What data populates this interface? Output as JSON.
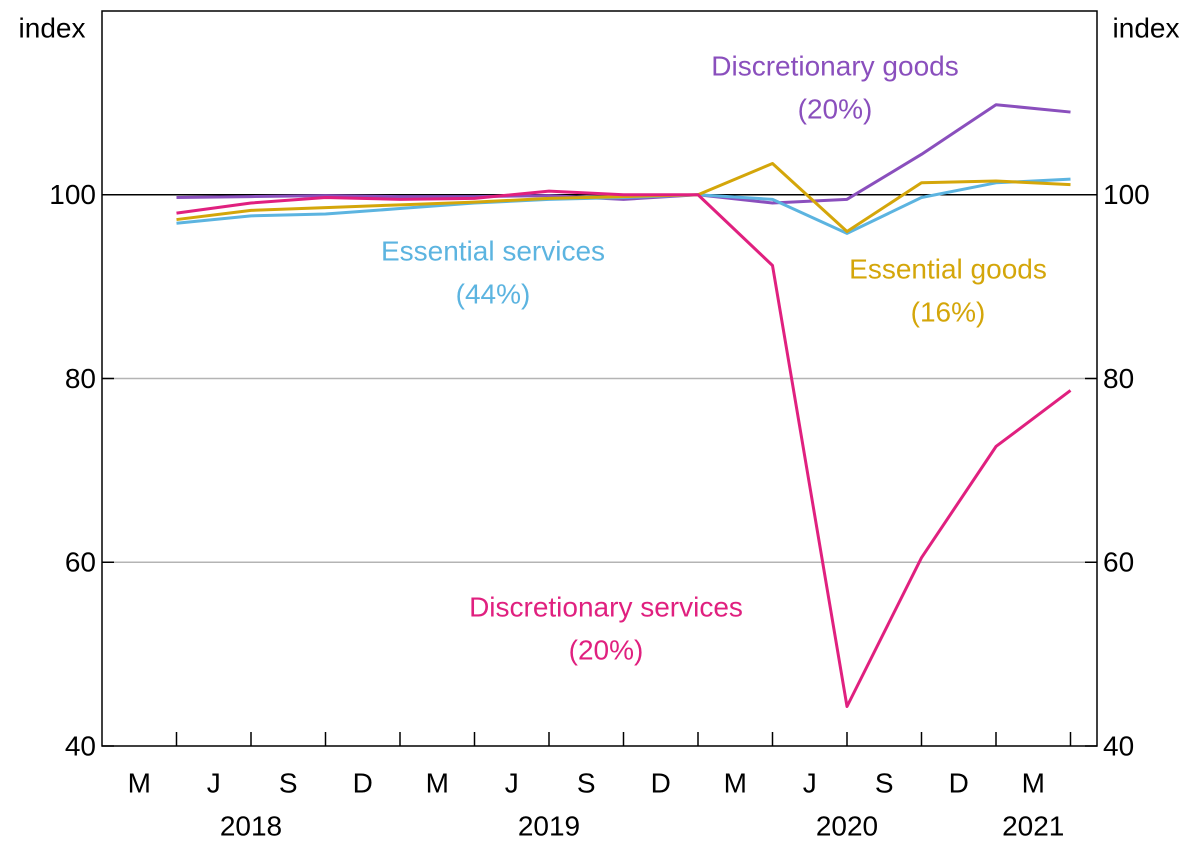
{
  "chart_data": {
    "type": "line",
    "ylabel": "index",
    "y2label": "index",
    "categories": [
      "M",
      "J",
      "S",
      "D",
      "M",
      "J",
      "S",
      "D",
      "M",
      "J",
      "S",
      "D",
      "M"
    ],
    "x_groups": [
      {
        "label": "2018",
        "size": 4
      },
      {
        "label": "2019",
        "size": 4
      },
      {
        "label": "2020",
        "size": 4
      },
      {
        "label": "2021",
        "size": 1
      }
    ],
    "ylim": [
      40,
      120
    ],
    "yticks": [
      40,
      60,
      80,
      100
    ],
    "y2lim": [
      40,
      120
    ],
    "y2ticks": [
      40,
      60,
      80,
      100
    ],
    "grid": true,
    "hline": 100,
    "series": [
      {
        "name": "Discretionary goods",
        "share": "(20%)",
        "color": "#8a4fbd",
        "values": [
          99.7,
          99.8,
          99.9,
          99.8,
          99.8,
          99.9,
          99.5,
          100,
          99.1,
          99.5,
          104.4,
          109.8,
          109.0
        ]
      },
      {
        "name": "Essential services",
        "share": "(44%)",
        "color": "#5cb4e0",
        "values": [
          96.9,
          97.7,
          97.9,
          98.5,
          99.1,
          99.5,
          99.7,
          100,
          99.5,
          95.8,
          99.7,
          101.3,
          101.7
        ]
      },
      {
        "name": "Essential goods",
        "share": "(16%)",
        "color": "#d4a60a",
        "values": [
          97.3,
          98.3,
          98.6,
          98.9,
          99.2,
          99.6,
          99.8,
          100,
          103.4,
          96.0,
          101.3,
          101.5,
          101.1
        ]
      },
      {
        "name": "Discretionary services",
        "share": "(20%)",
        "color": "#e0207f",
        "values": [
          98.0,
          99.1,
          99.7,
          99.5,
          99.6,
          100.4,
          100,
          100,
          92.3,
          44.3,
          60.5,
          72.6,
          78.7
        ]
      }
    ]
  }
}
